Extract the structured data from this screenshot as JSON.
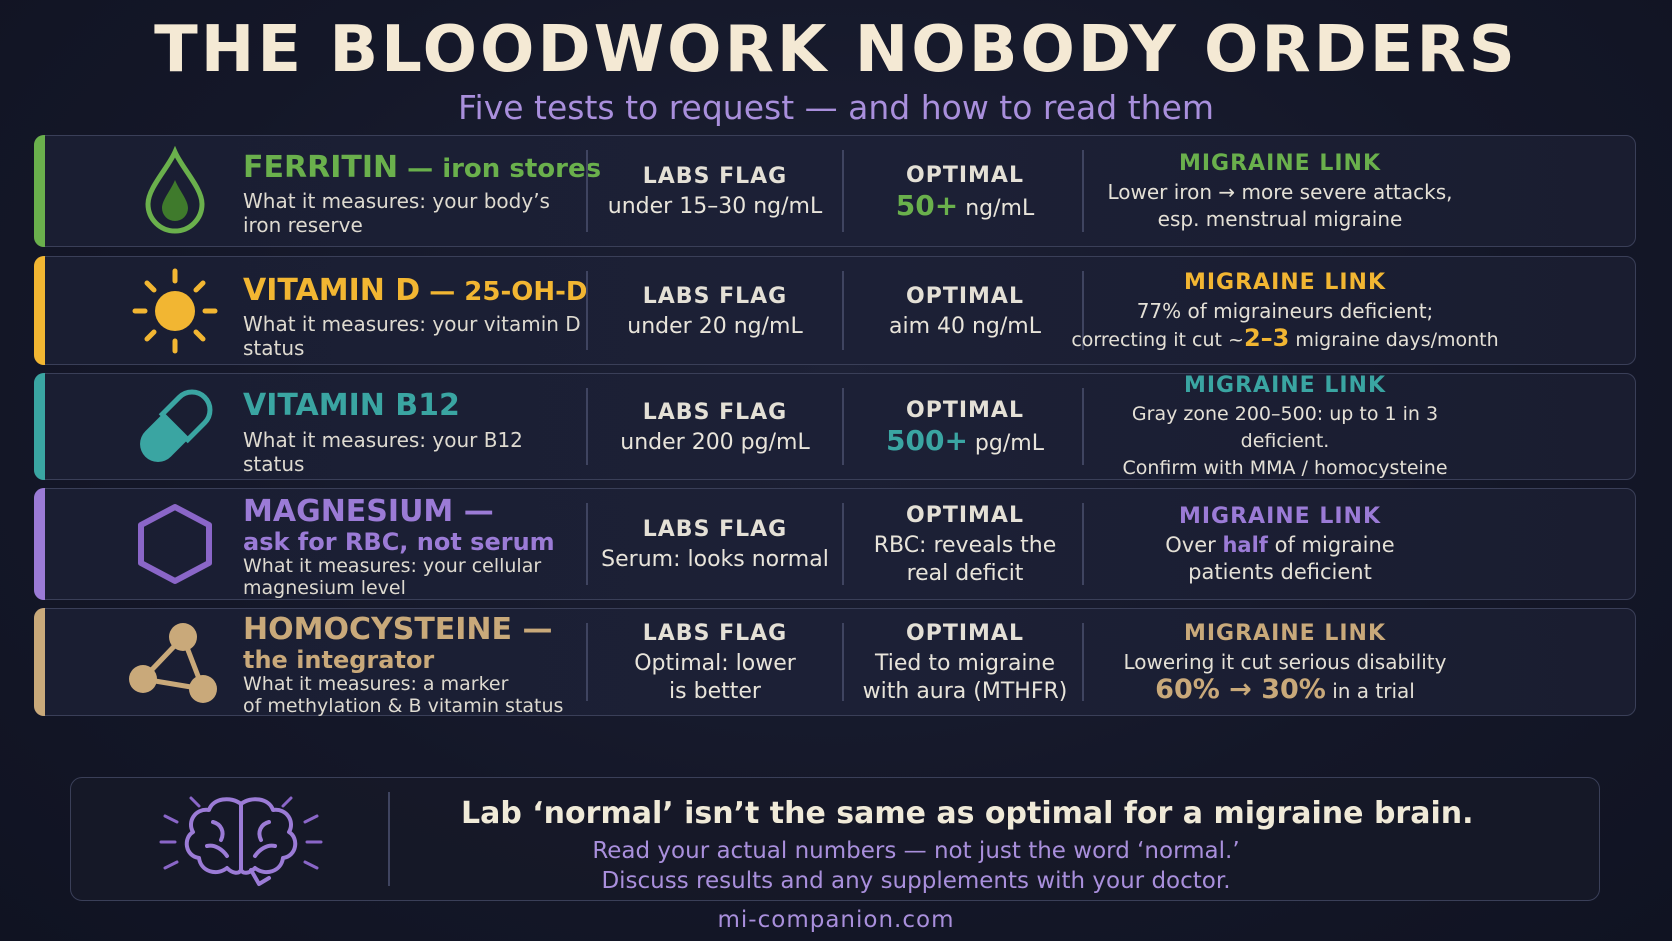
{
  "header": {
    "title": "THE BLOODWORK NOBODY ORDERS",
    "subtitle": "Five tests to request — and how to read them"
  },
  "colors": {
    "ferritin": "#6ab04c",
    "vitamin_d": "#f2b632",
    "b12": "#3aa5a2",
    "magnesium": "#9b7bd6",
    "homocysteine": "#c9a97a"
  },
  "rows": [
    {
      "icon": "blood-drop-icon",
      "name": "FERRITIN",
      "name_suffix": " — iron stores",
      "measures": "What it measures: your body’s iron reserve",
      "labs_header": "LABS FLAG",
      "labs_value": "under 15–30 ng/mL",
      "optimal_header": "OPTIMAL",
      "optimal_big": "50+",
      "optimal_rest": " ng/mL",
      "link_header": "MIGRAINE LINK",
      "link_line1": "Lower iron → more severe attacks,",
      "link_line2": "esp. menstrual migraine"
    },
    {
      "icon": "sun-icon",
      "name": "VITAMIN D",
      "name_suffix": " — 25-OH-D",
      "measures": "What it measures: your vitamin D status",
      "labs_header": "LABS FLAG",
      "labs_value": "under 20 ng/mL",
      "optimal_header": "OPTIMAL",
      "optimal_value": "aim 40 ng/mL",
      "link_header": "MIGRAINE LINK",
      "link_line1": "77% of migraineurs deficient;",
      "link_line2_pre": "correcting it cut ~",
      "link_line2_big": "2–3",
      "link_line2_post": " migraine days/month"
    },
    {
      "icon": "pill-capsule-icon",
      "name": "VITAMIN B12",
      "measures": "What it measures: your B12 status",
      "labs_header": "LABS FLAG",
      "labs_value": "under 200 pg/mL",
      "optimal_header": "OPTIMAL",
      "optimal_big": "500+",
      "optimal_rest": " pg/mL",
      "link_header": "MIGRAINE LINK",
      "link_line1": "Gray zone 200–500: up to 1 in 3 deficient.",
      "link_line2": "Confirm with MMA / homocysteine"
    },
    {
      "icon": "hexagon-icon",
      "name": "MAGNESIUM —",
      "name_line2": "ask for RBC, not serum",
      "measures": "What it measures: your cellular magnesium level",
      "labs_header": "LABS FLAG",
      "labs_value": "Serum: looks normal",
      "optimal_header": "OPTIMAL",
      "optimal_line1": "RBC: reveals the",
      "optimal_line2": "real deficit",
      "link_header": "MIGRAINE LINK",
      "link_line1_pre": "Over ",
      "link_line1_bold": "half",
      "link_line1_post": " of migraine",
      "link_line2": "patients deficient"
    },
    {
      "icon": "molecule-icon",
      "name": "HOMOCYSTEINE —",
      "name_line2": "the integrator",
      "measures_line1": "What it measures: a marker",
      "measures_line2": "of methylation & B vitamin status",
      "labs_header": "LABS FLAG",
      "labs_line1": "Optimal: lower",
      "labs_line2": "is better",
      "optimal_header": "OPTIMAL",
      "optimal_line1": "Tied to migraine",
      "optimal_line2": "with aura (MTHFR)",
      "link_header": "MIGRAINE LINK",
      "link_line1": "Lowering it cut serious disability",
      "link_line2_big": "60% → 30%",
      "link_line2_post": " in a trial"
    }
  ],
  "footer": {
    "icon": "brain-icon",
    "main": "Lab ‘normal’ isn’t the same as optimal for a migraine brain.",
    "sub1": "Read your actual numbers — not just the word ‘normal.’",
    "sub2": "Discuss results and any supplements with your doctor."
  },
  "site": "mi-companion.com"
}
